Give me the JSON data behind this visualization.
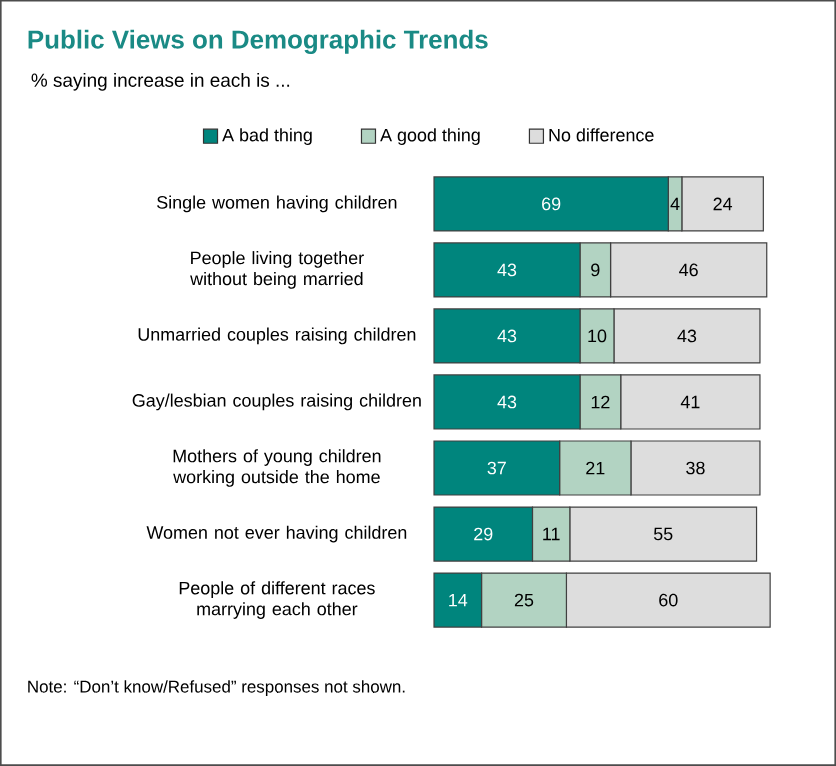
{
  "chart_data": {
    "type": "bar",
    "orientation": "horizontal",
    "stacked": true,
    "data_labels": true,
    "legend": "top",
    "title": "Public Views on Demographic Trends",
    "subtitle": "% saying increase in each is ...",
    "categories": [
      "Single women having children",
      "People living together without being married",
      "Unmarried couples raising children",
      "Gay/lesbian couples raising children",
      "Mothers of young children working outside the home",
      "Women not ever having children",
      "People of different races marrying each other"
    ],
    "series": [
      {
        "name": "A bad thing",
        "color": "#00857d",
        "values": [
          69,
          43,
          43,
          43,
          37,
          29,
          14
        ]
      },
      {
        "name": "A good thing",
        "color": "#b2d3c2",
        "values": [
          4,
          9,
          10,
          12,
          21,
          11,
          25
        ]
      },
      {
        "name": "No difference",
        "color": "#dddddd",
        "values": [
          24,
          46,
          43,
          41,
          38,
          55,
          60
        ]
      }
    ],
    "annotations": [
      "Note: “Don’t know/Refused” responses not shown."
    ]
  }
}
